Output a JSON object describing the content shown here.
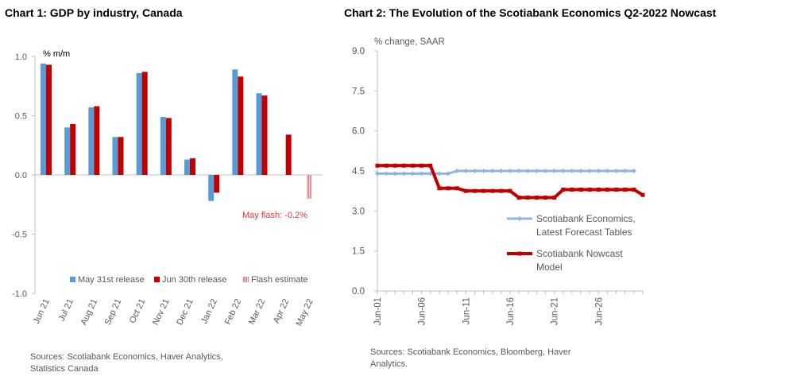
{
  "chart_data": [
    {
      "type": "bar",
      "title": "Chart 1: GDP by industry, Canada",
      "ylabel": "% m/m",
      "ylim": [
        -1.0,
        1.0
      ],
      "yticks": [
        "1.0",
        "0.5",
        "0.0",
        "-0.5",
        "-1.0"
      ],
      "categories": [
        "Jun 21",
        "Jul 21",
        "Aug 21",
        "Sep 21",
        "Oct 21",
        "Nov 21",
        "Dec 21",
        "Jan 22",
        "Feb 22",
        "Mar 22",
        "Apr 22",
        "May 22"
      ],
      "series": [
        {
          "name": "May 31st release",
          "color": "#5b9bd5",
          "values": [
            0.94,
            0.4,
            0.57,
            0.32,
            0.86,
            0.49,
            0.13,
            -0.22,
            0.89,
            0.69,
            null,
            null
          ]
        },
        {
          "name": "Jun 30th release",
          "color": "#c00000",
          "values": [
            0.93,
            0.43,
            0.58,
            0.32,
            0.87,
            0.48,
            0.14,
            -0.15,
            0.83,
            0.67,
            0.34,
            null
          ]
        },
        {
          "name": "Flash estimate",
          "color": "#d98c8c",
          "pattern": "hatched",
          "values": [
            null,
            null,
            null,
            null,
            null,
            null,
            null,
            null,
            null,
            null,
            null,
            -0.2
          ]
        }
      ],
      "annotations": [
        "May flash: -0.2%"
      ],
      "legend_position": "bottom",
      "grid": false
    },
    {
      "type": "line",
      "title": "Chart 2: The Evolution of the Scotiabank Economics Q2-2022 Nowcast",
      "ylabel": "% change, SAAR",
      "ylim": [
        0.0,
        9.0
      ],
      "yticks": [
        "9.0",
        "7.5",
        "6.0",
        "4.5",
        "3.0",
        "1.5",
        "0.0"
      ],
      "xticks": [
        "Jun-01",
        "Jun-06",
        "Jun-11",
        "Jun-16",
        "Jun-21",
        "Jun-26"
      ],
      "series": [
        {
          "name": "Scotiabank Economics, Latest Forecast Tables",
          "name_lines": [
            "Scotiabank Economics,",
            "Latest Forecast Tables"
          ],
          "color": "#8db4e2",
          "values": [
            4.4,
            4.4,
            4.4,
            4.4,
            4.4,
            4.4,
            4.4,
            4.4,
            4.4,
            4.5,
            4.5,
            4.5,
            4.5,
            4.5,
            4.5,
            4.5,
            4.5,
            4.5,
            4.5,
            4.5,
            4.5,
            4.5,
            4.5,
            4.5,
            4.5,
            4.5,
            4.5,
            4.5,
            4.5,
            4.5
          ]
        },
        {
          "name": "Scotiabank Nowcast Model",
          "name_lines": [
            "Scotiabank Nowcast",
            "Model"
          ],
          "color": "#c00000",
          "values": [
            4.7,
            4.7,
            4.7,
            4.7,
            4.7,
            4.7,
            4.7,
            3.85,
            3.85,
            3.85,
            3.75,
            3.75,
            3.75,
            3.75,
            3.75,
            3.75,
            3.5,
            3.5,
            3.5,
            3.5,
            3.5,
            3.8,
            3.8,
            3.8,
            3.8,
            3.8,
            3.8,
            3.8,
            3.8,
            3.8,
            3.6
          ]
        }
      ],
      "legend_position": "right",
      "grid": false
    }
  ],
  "sources": [
    "Sources: Scotiabank Economics, Haver Analytics, Statistics Canada",
    "Sources: Scotiabank Economics, Bloomberg, Haver Analytics."
  ]
}
